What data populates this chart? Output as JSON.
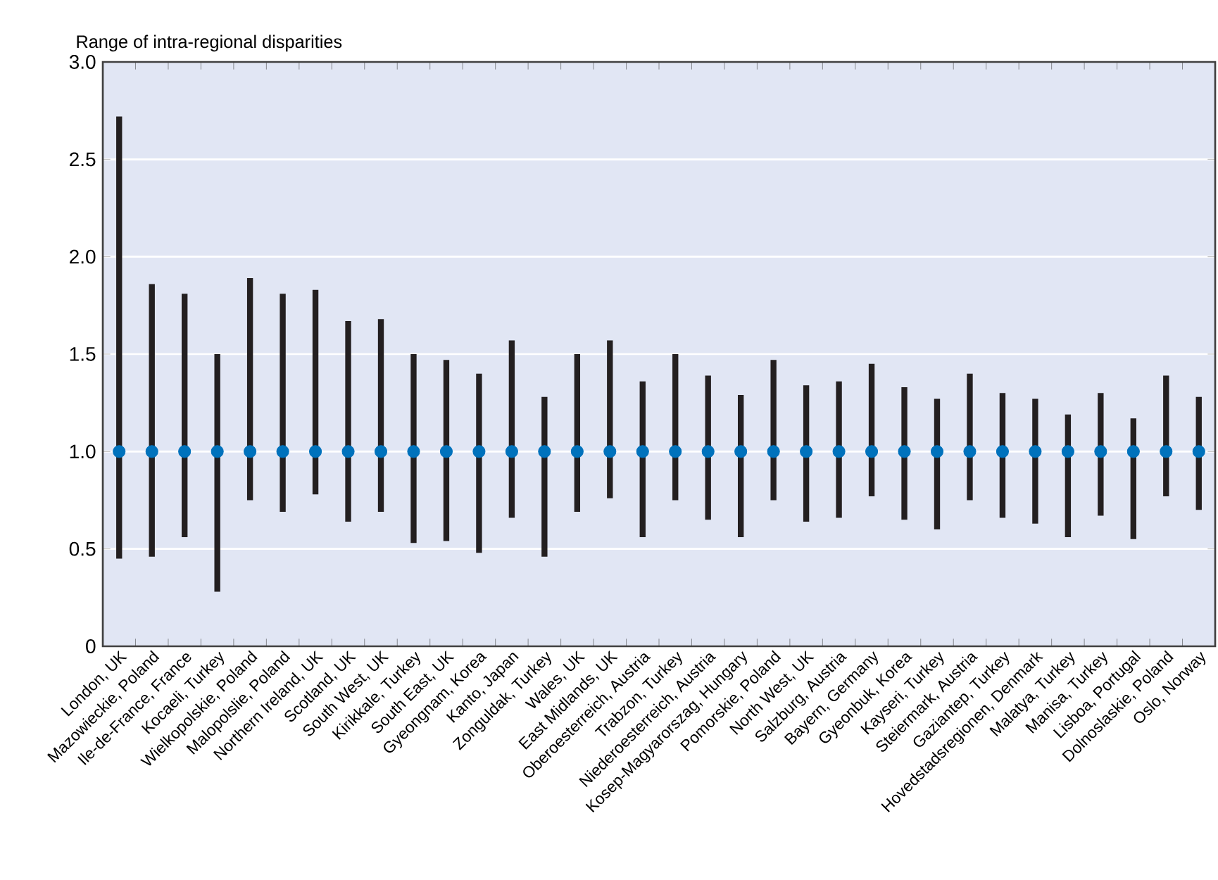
{
  "chart_data": {
    "type": "bar",
    "ylabel": "Range of intra-regional disparities",
    "categories": [
      "London, UK",
      "Mazowieckie, Poland",
      "Ile-de-France, France",
      "Kocaeli, Turkey",
      "Wielkopolskie, Poland",
      "Malopolslie, Poland",
      "Northern Ireland, UK",
      "Scotland, UK",
      "South West, UK",
      "Kirikkale, Turkey",
      "South East, UK",
      "Gyeongnam, Korea",
      "Kanto, Japan",
      "Zonguldak, Turkey",
      "Wales, UK",
      "East Midlands, UK",
      "Oberoesterreich, Austria",
      "Trabzon, Turkey",
      "Niederoesterreich, Austria",
      "Kosep-Magyarorszag, Hungary",
      "Pomorskie, Poland",
      "North West, UK",
      "Salzburg, Austria",
      "Bayern, Germany",
      "Gyeonbuk, Korea",
      "Kayseri, Turkey",
      "Steiermark, Austria",
      "Gaziantep, Turkey",
      "Hovedstadsregionen, Denmark",
      "Malatya, Turkey",
      "Manisa, Turkey",
      "Lisboa, Portugal",
      "Dolnoslaskie, Poland",
      "Oslo, Norway"
    ],
    "series": [
      {
        "color": "#231f20",
        "base": [
          0.45,
          0.46,
          0.56,
          0.28,
          0.75,
          0.69,
          0.78,
          0.64,
          0.69,
          0.53,
          0.54,
          0.48,
          0.66,
          0.46,
          0.69,
          0.76,
          0.56,
          0.75,
          0.65,
          0.56,
          0.75,
          0.64,
          0.66,
          0.77,
          0.65,
          0.6,
          0.75,
          0.66,
          0.63,
          0.56,
          0.67,
          0.55,
          0.77,
          0.7
        ],
        "values": [
          2.27,
          1.4,
          1.25,
          1.22,
          1.14,
          1.12,
          1.05,
          1.03,
          0.99,
          0.97,
          0.93,
          0.92,
          0.91,
          0.82,
          0.81,
          0.81,
          0.8,
          0.75,
          0.74,
          0.73,
          0.72,
          0.7,
          0.7,
          0.68,
          0.68,
          0.67,
          0.65,
          0.64,
          0.64,
          0.63,
          0.63,
          0.62,
          0.62,
          0.58
        ]
      },
      {
        "type": "scatter",
        "color": "#0072bc",
        "values": [
          1,
          1,
          1,
          1,
          1,
          1,
          1,
          1,
          1,
          1,
          1,
          1,
          1,
          1,
          1,
          1,
          1,
          1,
          1,
          1,
          1,
          1,
          1,
          1,
          1,
          1,
          1,
          1,
          1,
          1,
          1,
          1,
          1,
          1
        ]
      }
    ],
    "ylim": [
      0,
      3.0
    ],
    "yticks": [
      0,
      0.5,
      {
        "value": 1,
        "label": "1.0"
      },
      1.5,
      {
        "value": 2,
        "label": "2.0"
      },
      2.5,
      {
        "value": 3,
        "label": "3.0"
      }
    ],
    "grid": "y",
    "marker": "circle"
  }
}
